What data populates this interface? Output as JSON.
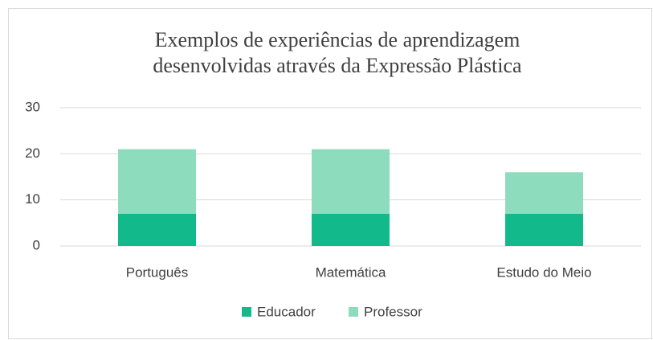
{
  "chart_data": {
    "type": "stacked_bar",
    "title": "Exemplos de experiências de aprendizagem desenvolvidas através da Expressão Plástica",
    "categories": [
      "Português",
      "Matemática",
      "Estudo do Meio"
    ],
    "series": [
      {
        "name": "Educador",
        "color": "#12b98a",
        "values": [
          7,
          7,
          7
        ]
      },
      {
        "name": "Professor",
        "color": "#8ddcbd",
        "values": [
          14,
          14,
          9
        ]
      }
    ],
    "ylim": [
      0,
      30
    ],
    "yticks": [
      0,
      10,
      20,
      30
    ],
    "grid": true,
    "legend": "bottom"
  }
}
